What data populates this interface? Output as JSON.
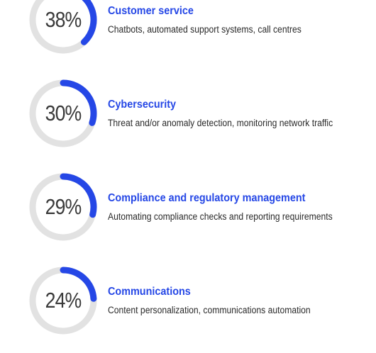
{
  "chart_data": {
    "type": "donut",
    "items": [
      {
        "category": "Customer service",
        "description": "Chatbots, automated support systems, call centres",
        "value": 38,
        "label": "38%"
      },
      {
        "category": "Cybersecurity",
        "description": "Threat and/or anomaly detection, monitoring network traffic",
        "value": 30,
        "label": "30%"
      },
      {
        "category": "Compliance and regulatory management",
        "description": "Automating compliance checks and reporting requirements",
        "value": 29,
        "label": "29%"
      },
      {
        "category": "Communications",
        "description": "Content personalization, communications automation",
        "value": 24,
        "label": "24%"
      }
    ],
    "colors": {
      "filled": "#2547e6",
      "track": "#e2e2e2"
    }
  }
}
